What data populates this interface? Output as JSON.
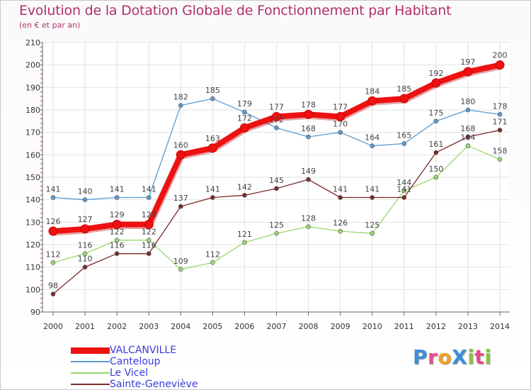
{
  "header": {
    "title": "Evolution de la Dotation Globale de Fonctionnement par Habitant",
    "subtitle": "(en € et par an)"
  },
  "logo": {
    "text": "ProXiti",
    "letters": [
      {
        "char": "P",
        "color": "#3a8fd8"
      },
      {
        "char": "r",
        "color": "#e94b8a"
      },
      {
        "char": "o",
        "color": "#f0a020"
      },
      {
        "char": "X",
        "color": "#3a8fd8"
      },
      {
        "char": "i",
        "color": "#88c440"
      },
      {
        "char": "t",
        "color": "#e94b8a"
      },
      {
        "char": "i",
        "color": "#88c440"
      }
    ]
  },
  "chart_data": {
    "type": "line",
    "title": "Evolution de la Dotation Globale de Fonctionnement par Habitant",
    "subtitle": "(en € et par an)",
    "xlabel": "",
    "ylabel": "",
    "x": [
      "2000",
      "2001",
      "2002",
      "2003",
      "2004",
      "2005",
      "2006",
      "2007",
      "2008",
      "2009",
      "2010",
      "2011",
      "2012",
      "2013",
      "2014"
    ],
    "ylim": [
      90,
      210
    ],
    "yticks": [
      90,
      100,
      110,
      120,
      130,
      140,
      150,
      160,
      170,
      180,
      190,
      200,
      210
    ],
    "grid": true,
    "legend_position": "bottom-left",
    "series": [
      {
        "name": "Canteloup",
        "color": "#5a9ad0",
        "values": [
          141,
          140,
          141,
          141,
          182,
          185,
          179,
          172,
          168,
          170,
          164,
          165,
          175,
          180,
          178
        ]
      },
      {
        "name": "Le Vicel",
        "color": "#98d86c",
        "values": [
          112,
          116,
          122,
          122,
          109,
          112,
          121,
          125,
          128,
          126,
          125,
          144,
          150,
          164,
          158
        ]
      },
      {
        "name": "Sainte-Geneviève",
        "color": "#7a2a2a",
        "values": [
          98,
          110,
          116,
          116,
          137,
          141,
          142,
          145,
          149,
          141,
          141,
          141,
          161,
          168,
          171
        ]
      },
      {
        "name": "VALCANVILLE",
        "color": "#ee1111",
        "values": [
          126,
          127,
          129,
          129,
          160,
          163,
          172,
          177,
          178,
          177,
          184,
          185,
          192,
          197,
          200
        ]
      }
    ],
    "legend_order": [
      "VALCANVILLE",
      "Canteloup",
      "Le Vicel",
      "Sainte-Geneviève"
    ]
  }
}
